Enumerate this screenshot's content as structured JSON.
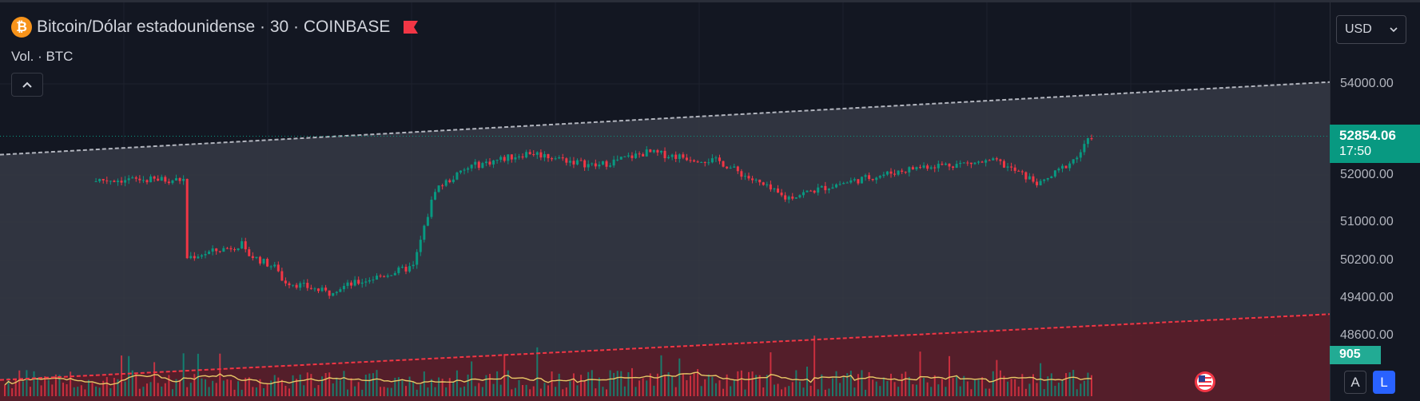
{
  "header": {
    "symbol_title": "Bitcoin/Dólar estadounidense · 30 · COINBASE",
    "coin_glyph": "₿",
    "volume_label": "Vol. · BTC",
    "collapse_icon": "chevron-up-icon",
    "flag_icon": "red-flag-icon"
  },
  "currency_selector": {
    "value": "USD",
    "icon": "chevron-down-icon"
  },
  "price_axis": {
    "ticks": [
      "54000.00",
      "52000.00",
      "51000.00",
      "50200.00",
      "49400.00",
      "48600.00"
    ]
  },
  "last_price": {
    "price": "52854.06",
    "countdown": "17:50"
  },
  "volume_tag": "905",
  "scale_buttons": {
    "auto": "A",
    "log": "L"
  },
  "colors": {
    "background": "#131722",
    "up": "#089981",
    "down": "#f23645",
    "channel_fill": "#363a45",
    "lower_fill": "#5c1f2b",
    "volume_ma": "#e8c766",
    "accent": "#2962ff"
  },
  "chart_data": {
    "type": "candlestick",
    "y_axis_ticks": [
      54000,
      52000,
      51000,
      50200,
      49400,
      48600
    ],
    "ylim": [
      48300,
      54400
    ],
    "last_price": 52854.06,
    "price_segments": [
      {
        "candles": 50,
        "from": 51900,
        "to": 51900
      },
      {
        "candles": 16,
        "from": 50200,
        "to": 50500
      },
      {
        "candles": 10,
        "from": 50300,
        "to": 49900
      },
      {
        "candles": 14,
        "from": 49700,
        "to": 49400
      },
      {
        "candles": 22,
        "from": 49500,
        "to": 50000
      },
      {
        "candles": 6,
        "from": 50000,
        "to": 51700
      },
      {
        "candles": 10,
        "from": 51700,
        "to": 52200
      },
      {
        "candles": 16,
        "from": 52200,
        "to": 52500
      },
      {
        "candles": 18,
        "from": 52500,
        "to": 52200
      },
      {
        "candles": 14,
        "from": 52200,
        "to": 52500
      },
      {
        "candles": 20,
        "from": 52500,
        "to": 52300
      },
      {
        "candles": 18,
        "from": 52300,
        "to": 51500
      },
      {
        "candles": 14,
        "from": 51500,
        "to": 51800
      },
      {
        "candles": 24,
        "from": 51800,
        "to": 52200
      },
      {
        "candles": 20,
        "from": 52200,
        "to": 52300
      },
      {
        "candles": 12,
        "from": 52300,
        "to": 51800
      },
      {
        "candles": 10,
        "from": 51800,
        "to": 52400
      },
      {
        "candles": 4,
        "from": 52400,
        "to": 52854
      }
    ],
    "channel_upper": {
      "start": 52450,
      "end": 54040
    },
    "channel_lower": {
      "start": 47520,
      "end": 48960
    },
    "volume_ma_visible": true
  }
}
